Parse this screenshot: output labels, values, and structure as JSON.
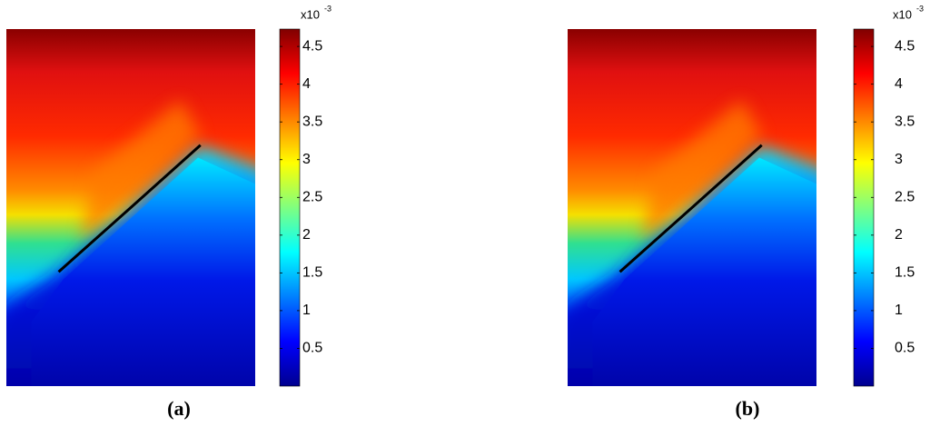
{
  "chart_data": [
    {
      "type": "heatmap",
      "caption": "(a)",
      "colorbar_scale": "x10",
      "colorbar_exponent": "-3",
      "clim": [
        0,
        4.73
      ],
      "cticks": [
        0.5,
        1,
        1.5,
        2,
        2.5,
        3,
        3.5,
        4,
        4.5
      ]
    },
    {
      "type": "heatmap",
      "caption": "(b)",
      "colorbar_scale": "x10",
      "colorbar_exponent": "-3",
      "clim": [
        0,
        4.73
      ],
      "cticks": [
        0.5,
        1,
        1.5,
        2,
        2.5,
        3,
        3.5,
        4,
        4.5
      ]
    }
  ]
}
